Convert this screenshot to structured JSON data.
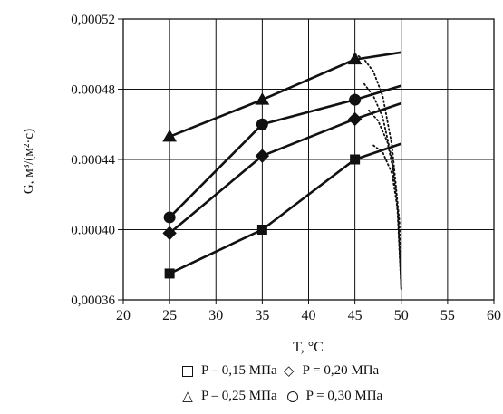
{
  "chart_data": {
    "type": "line",
    "xlabel": "T, °C",
    "ylabel": "G, м³/(м²·с)",
    "xlim": [
      20,
      60
    ],
    "ylim": [
      0.00036,
      0.00052
    ],
    "x_ticks": [
      "20",
      "25",
      "30",
      "35",
      "40",
      "45",
      "50",
      "55",
      "60"
    ],
    "y_ticks": [
      "0,00036",
      "0.00040",
      "0.00044",
      "0.00048",
      "0,00052"
    ],
    "grid": "vertical and horizontal gridlines",
    "legend_position": "bottom",
    "series": [
      {
        "name": "P – 0,15 МПа",
        "marker": "square",
        "x": [
          25,
          35,
          45
        ],
        "y": [
          0.000375,
          0.0004,
          0.00044
        ],
        "extrapolation": {
          "x": [
            45,
            50
          ],
          "y": [
            0.00044,
            0.000449
          ]
        }
      },
      {
        "name": "P = 0,20 МПа",
        "marker": "diamond",
        "x": [
          25,
          35,
          45
        ],
        "y": [
          0.000398,
          0.000442,
          0.000463
        ],
        "extrapolation": {
          "x": [
            45,
            50
          ],
          "y": [
            0.000463,
            0.000472
          ]
        }
      },
      {
        "name": "P – 0,25 МПа",
        "marker": "triangle",
        "x": [
          25,
          35,
          45
        ],
        "y": [
          0.000453,
          0.000474,
          0.000497
        ],
        "extrapolation": {
          "x": [
            45,
            50
          ],
          "y": [
            0.000497,
            0.000501
          ]
        }
      },
      {
        "name": "P = 0,30 МПа",
        "marker": "circle",
        "x": [
          25,
          35,
          45
        ],
        "y": [
          0.000407,
          0.00046,
          0.000474
        ],
        "extrapolation": {
          "x": [
            45,
            50
          ],
          "y": [
            0.000474,
            0.000482
          ]
        }
      }
    ],
    "dotted_boundary": [
      {
        "x": [
          45,
          46,
          47,
          48,
          49,
          49.6,
          50
        ],
        "y": [
          0.0005,
          0.000497,
          0.00049,
          0.000476,
          0.000448,
          0.000415,
          0.000366
        ]
      },
      {
        "x": [
          46,
          47,
          48,
          49,
          49.6,
          50
        ],
        "y": [
          0.000483,
          0.000476,
          0.000464,
          0.00044,
          0.00041,
          0.000366
        ]
      },
      {
        "x": [
          46.5,
          47.5,
          48.5,
          49.3,
          49.8,
          50
        ],
        "y": [
          0.000468,
          0.000462,
          0.00045,
          0.00043,
          0.000405,
          0.000366
        ]
      },
      {
        "x": [
          47,
          48,
          49,
          49.6,
          50
        ],
        "y": [
          0.000448,
          0.000444,
          0.000432,
          0.000412,
          0.000366
        ]
      }
    ]
  },
  "legend": {
    "row1": [
      {
        "label": "P – 0,15 МПа",
        "icon": "square-marker"
      },
      {
        "label": "P = 0,20 МПа",
        "icon": "diamond-marker"
      }
    ],
    "row2": [
      {
        "label": "P – 0,25 МПа",
        "icon": "triangle-marker"
      },
      {
        "label": "P = 0,30 МПа",
        "icon": "circle-marker"
      }
    ]
  }
}
